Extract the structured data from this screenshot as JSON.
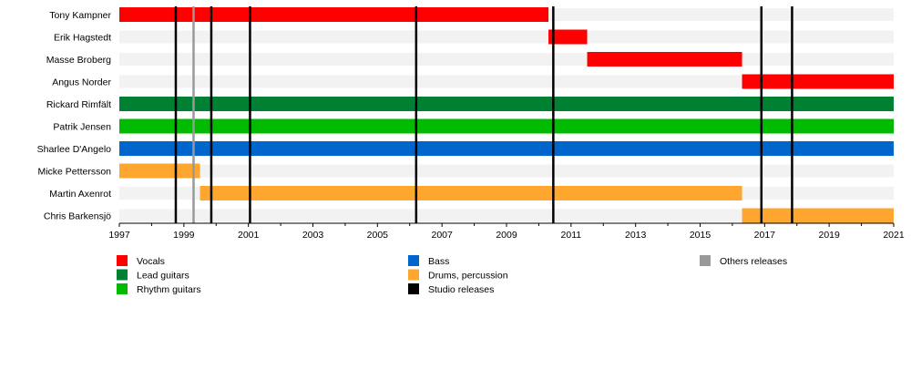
{
  "chart_data": {
    "type": "timeline",
    "xlim": [
      1997,
      2021
    ],
    "tick_labels": [
      "1997",
      "1999",
      "2001",
      "2003",
      "2005",
      "2007",
      "2009",
      "2011",
      "2013",
      "2015",
      "2017",
      "2019",
      "2021"
    ],
    "members": [
      "Tony Kampner",
      "Erik Hagstedt",
      "Masse Broberg",
      "Angus Norder",
      "Rickard Rimfält",
      "Patrik Jensen",
      "Sharlee D'Angelo",
      "Micke Pettersson",
      "Martin Axenrot",
      "Chris Barkensjö"
    ],
    "roles": [
      {
        "name": "Vocals",
        "color": "#ff0000"
      },
      {
        "name": "Lead guitars",
        "color": "#008033"
      },
      {
        "name": "Rhythm guitars",
        "color": "#00bb00"
      },
      {
        "name": "Bass",
        "color": "#0066cc"
      },
      {
        "name": "Drums, percussion",
        "color": "#ffa62f"
      },
      {
        "name": "Studio releases",
        "color": "#000000"
      },
      {
        "name": "Others releases",
        "color": "#999999"
      }
    ],
    "bars": [
      {
        "member": "Tony Kampner",
        "role": "Vocals",
        "start": 1997,
        "end": 2010.3
      },
      {
        "member": "Erik Hagstedt",
        "role": "Vocals",
        "start": 2010.3,
        "end": 2011.5
      },
      {
        "member": "Masse Broberg",
        "role": "Vocals",
        "start": 2011.5,
        "end": 2016.3
      },
      {
        "member": "Angus Norder",
        "role": "Vocals",
        "start": 2016.3,
        "end": 2021
      },
      {
        "member": "Rickard Rimfält",
        "role": "Lead guitars",
        "start": 1997,
        "end": 2021
      },
      {
        "member": "Patrik Jensen",
        "role": "Rhythm guitars",
        "start": 1997,
        "end": 2021
      },
      {
        "member": "Sharlee D'Angelo",
        "role": "Bass",
        "start": 1997,
        "end": 2021
      },
      {
        "member": "Micke Pettersson",
        "role": "Drums, percussion",
        "start": 1997,
        "end": 1999.5
      },
      {
        "member": "Martin Axenrot",
        "role": "Drums, percussion",
        "start": 1999.5,
        "end": 2016.3
      },
      {
        "member": "Chris Barkensjö",
        "role": "Drums, percussion",
        "start": 2016.3,
        "end": 2021
      }
    ],
    "studio_releases": [
      1998.75,
      1999.85,
      2001.05,
      2006.2,
      2010.45,
      2016.9,
      2017.85
    ],
    "other_releases": [
      1999.3
    ],
    "legend_columns": [
      [
        "Vocals",
        "Lead guitars",
        "Rhythm guitars"
      ],
      [
        "Bass",
        "Drums, percussion",
        "Studio releases"
      ],
      [
        "Others releases"
      ]
    ],
    "row_background": "#f2f2f2"
  }
}
